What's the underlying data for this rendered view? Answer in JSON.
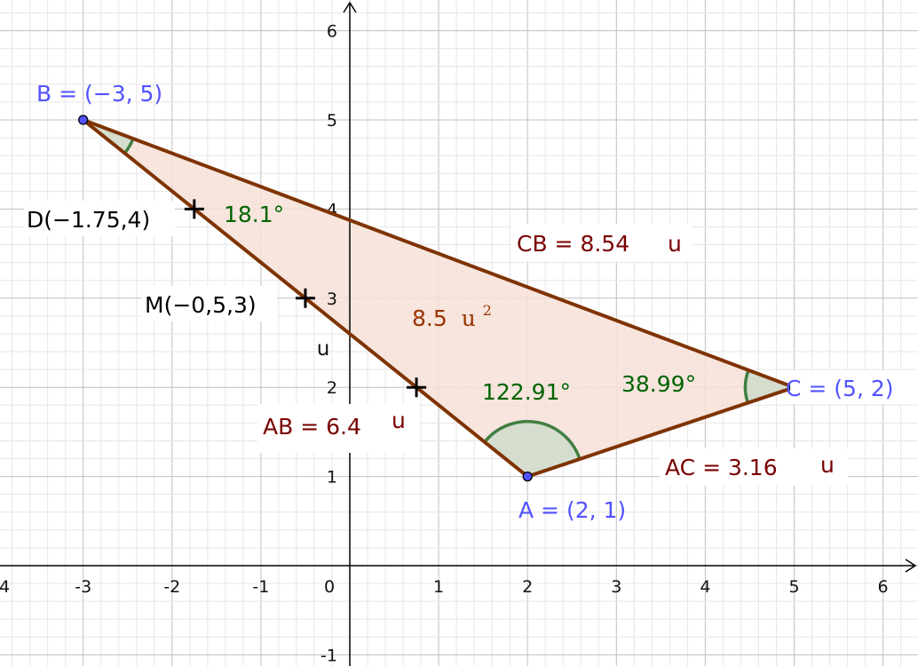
{
  "axes": {
    "x_ticks": [
      "4",
      "-3",
      "-2",
      "-1",
      "0",
      "1",
      "2",
      "3",
      "4",
      "5",
      "6"
    ],
    "y_ticks": [
      "6",
      "5",
      "4",
      "3",
      "2",
      "1",
      "-1"
    ],
    "y_unit": "u"
  },
  "points": {
    "A": {
      "label": "A = (2, 1)",
      "x": 2,
      "y": 1
    },
    "B": {
      "label": "B = (−3, 5)",
      "x": -3,
      "y": 5
    },
    "C": {
      "label": "C = (5, 2)",
      "x": 5,
      "y": 2
    },
    "D": {
      "label": "D(−1.75,4)",
      "x": -1.75,
      "y": 4
    },
    "M": {
      "label": "M(−0,5,3)",
      "x": -0.5,
      "y": 3
    },
    "P": {
      "x": 0.75,
      "y": 2
    }
  },
  "segments": {
    "CB": {
      "label": "CB = 8.54",
      "unit": "u"
    },
    "AB": {
      "label": "AB = 6.4",
      "unit": "u"
    },
    "AC": {
      "label": "AC = 3.16",
      "unit": "u"
    }
  },
  "angles": {
    "B": "18.1°",
    "A": "122.91°",
    "C": "38.99°"
  },
  "area": {
    "value": "8.5",
    "unit": "u",
    "exponent": "2"
  },
  "colors": {
    "grid": "#cccccc",
    "axis": "#000000",
    "triangle_edge": "#7f3300",
    "triangle_fill": "#f6e1d8",
    "angle": "#417f41",
    "angle_fill": "#d5ddcf",
    "point_blue": "#5252ff",
    "segment_label": "#7a0000",
    "angle_label": "#006400"
  }
}
